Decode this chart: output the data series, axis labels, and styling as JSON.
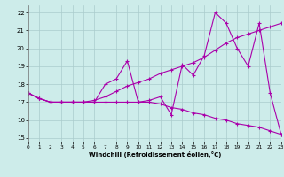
{
  "xlabel": "Windchill (Refroidissement éolien,°C)",
  "x_data": [
    0,
    1,
    2,
    3,
    4,
    5,
    6,
    7,
    8,
    9,
    10,
    11,
    12,
    13,
    14,
    15,
    16,
    17,
    18,
    19,
    20,
    21,
    22,
    23
  ],
  "y_main": [
    17.5,
    17.2,
    17.0,
    17.0,
    17.0,
    17.0,
    17.0,
    18.0,
    18.3,
    19.3,
    17.0,
    17.1,
    17.3,
    16.3,
    19.1,
    18.5,
    19.6,
    22.0,
    21.4,
    20.0,
    19.0,
    21.4,
    17.5,
    15.2
  ],
  "y_upper": [
    17.5,
    17.2,
    17.0,
    17.0,
    17.0,
    17.0,
    17.1,
    17.3,
    17.6,
    17.9,
    18.1,
    18.3,
    18.6,
    18.8,
    19.0,
    19.2,
    19.5,
    19.9,
    20.3,
    20.6,
    20.8,
    21.0,
    21.2,
    21.4
  ],
  "y_lower": [
    17.5,
    17.2,
    17.0,
    17.0,
    17.0,
    17.0,
    17.0,
    17.0,
    17.0,
    17.0,
    17.0,
    17.0,
    16.9,
    16.7,
    16.6,
    16.4,
    16.3,
    16.1,
    16.0,
    15.8,
    15.7,
    15.6,
    15.4,
    15.2
  ],
  "bg_color": "#cdecea",
  "grid_color": "#aacccc",
  "line_color": "#aa00aa",
  "ylim": [
    14.8,
    22.4
  ],
  "xlim": [
    0,
    23
  ],
  "yticks": [
    15,
    16,
    17,
    18,
    19,
    20,
    21,
    22
  ],
  "xticks": [
    0,
    1,
    2,
    3,
    4,
    5,
    6,
    7,
    8,
    9,
    10,
    11,
    12,
    13,
    14,
    15,
    16,
    17,
    18,
    19,
    20,
    21,
    22,
    23
  ]
}
